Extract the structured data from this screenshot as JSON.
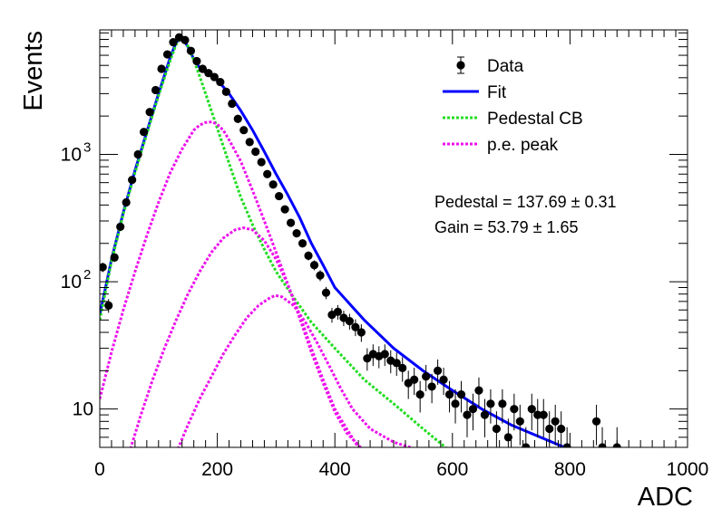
{
  "chart_data": {
    "type": "scatter",
    "xlabel": "ADC",
    "ylabel": "Events",
    "xlim": [
      0,
      1000
    ],
    "ylim": [
      5,
      9500
    ],
    "log_y": true,
    "grid": false,
    "legend_position": "top-right",
    "x_ticks": [
      {
        "value": 0,
        "label": "0"
      },
      {
        "value": 200,
        "label": "200"
      },
      {
        "value": 400,
        "label": "400"
      },
      {
        "value": 600,
        "label": "600"
      },
      {
        "value": 800,
        "label": "800"
      },
      {
        "value": 1000,
        "label": "1000"
      }
    ],
    "y_ticks": [
      {
        "value": 10,
        "label": "10"
      },
      {
        "value": 100,
        "label": "10",
        "exponent": "2"
      },
      {
        "value": 1000,
        "label": "10",
        "exponent": "3"
      }
    ],
    "legend": [
      {
        "label": "Data",
        "style": "marker",
        "color": "#000000"
      },
      {
        "label": "Fit",
        "style": "solid",
        "color": "#0000ff"
      },
      {
        "label": "Pedestal CB",
        "style": "dotted",
        "color": "#22dd22"
      },
      {
        "label": "p.e. peak",
        "style": "dotted",
        "color": "#ee11ee"
      }
    ],
    "annotations": [
      {
        "text": "Pedestal = 137.69 ± 0.31"
      },
      {
        "text": "Gain = 53.79 ± 1.65"
      }
    ],
    "series": [
      {
        "name": "Data",
        "kind": "points",
        "color": "#000000",
        "x": [
          5,
          15,
          25,
          35,
          45,
          55,
          65,
          75,
          85,
          95,
          105,
          115,
          125,
          135,
          145,
          155,
          165,
          175,
          185,
          195,
          205,
          215,
          225,
          235,
          245,
          255,
          265,
          275,
          285,
          295,
          305,
          315,
          325,
          335,
          345,
          355,
          365,
          375,
          385,
          395,
          405,
          415,
          425,
          435,
          445,
          455,
          465,
          475,
          485,
          495,
          505,
          515,
          525,
          535,
          545,
          555,
          565,
          575,
          585,
          595,
          605,
          615,
          625,
          635,
          645,
          655,
          665,
          675,
          685,
          695,
          705,
          715,
          725,
          735,
          745,
          755,
          765,
          775,
          785,
          795,
          845,
          855,
          880
        ],
        "y": [
          130,
          65,
          155,
          270,
          420,
          630,
          1000,
          1500,
          2150,
          3200,
          4700,
          6100,
          7600,
          8300,
          7900,
          6500,
          5400,
          4700,
          4350,
          4050,
          3700,
          3100,
          2500,
          1900,
          1550,
          1250,
          1050,
          870,
          700,
          580,
          470,
          370,
          290,
          240,
          200,
          160,
          135,
          112,
          82,
          55,
          58,
          52,
          49,
          44,
          40,
          25,
          27,
          26,
          27,
          24,
          23,
          21,
          16,
          17,
          13,
          18,
          15,
          20,
          17,
          13,
          11,
          13,
          9,
          10,
          14,
          9,
          11,
          7,
          11,
          6,
          10,
          8,
          5,
          10,
          9,
          9,
          7,
          8,
          7,
          5,
          8,
          5,
          5
        ],
        "yerr": [
          11,
          8,
          12,
          16,
          20,
          25,
          32,
          39,
          46,
          57,
          69,
          78,
          87,
          91,
          89,
          81,
          73,
          69,
          66,
          64,
          61,
          56,
          50,
          44,
          39,
          35,
          32,
          29,
          26,
          24,
          22,
          19,
          17,
          15,
          14,
          13,
          12,
          11,
          9,
          7.4,
          7.6,
          7.2,
          7,
          6.6,
          6.3,
          5,
          5.2,
          5.1,
          5.2,
          4.9,
          4.8,
          4.6,
          4,
          4.1,
          3.6,
          4.2,
          3.9,
          4.5,
          4.1,
          3.6,
          3.3,
          3.6,
          3,
          3.2,
          3.7,
          3,
          3.3,
          2.6,
          3.3,
          2.4,
          3.2,
          2.8,
          2.2,
          3.2,
          3,
          3,
          2.6,
          2.8,
          2.6,
          2.2,
          2.8,
          2.2,
          2.2
        ]
      },
      {
        "name": "Fit",
        "kind": "line",
        "color": "#0000ff",
        "x": [
          0,
          20,
          40,
          60,
          80,
          100,
          120,
          130,
          140,
          150,
          160,
          170,
          180,
          190,
          200,
          210,
          220,
          240,
          260,
          280,
          300,
          320,
          340,
          360,
          380,
          400,
          450,
          500,
          550,
          600,
          650,
          700,
          750,
          800
        ],
        "y": [
          55,
          150,
          350,
          750,
          1500,
          3000,
          5800,
          7600,
          8300,
          7000,
          5600,
          4800,
          4400,
          4100,
          3800,
          3400,
          3000,
          2200,
          1550,
          1050,
          700,
          480,
          320,
          200,
          135,
          90,
          50,
          30,
          20,
          14,
          10,
          7.5,
          6,
          4.8
        ]
      },
      {
        "name": "Pedestal CB",
        "kind": "line",
        "style": "dotted",
        "color": "#22dd22",
        "x": [
          0,
          20,
          40,
          60,
          80,
          100,
          120,
          130,
          138,
          150,
          160,
          170,
          180,
          200,
          220,
          240,
          260,
          280,
          300,
          330,
          360,
          400,
          450,
          500,
          550,
          600
        ],
        "y": [
          50,
          145,
          340,
          720,
          1450,
          2900,
          5500,
          7300,
          8200,
          7100,
          5500,
          4100,
          3000,
          1600,
          850,
          460,
          280,
          180,
          120,
          75,
          48,
          30,
          17,
          11,
          7,
          4.5
        ]
      },
      {
        "name": "p.e. peak",
        "kind": "line",
        "style": "dotted",
        "color": "#ee11ee",
        "x": [
          0,
          20,
          40,
          60,
          80,
          100,
          120,
          140,
          160,
          170,
          180,
          191,
          200,
          210,
          220,
          240,
          260,
          280,
          300,
          320,
          340,
          360,
          380,
          400,
          420,
          440,
          460,
          480
        ],
        "y": [
          12,
          28,
          60,
          120,
          230,
          420,
          720,
          1100,
          1550,
          1700,
          1780,
          1800,
          1720,
          1550,
          1300,
          880,
          520,
          300,
          170,
          95,
          52,
          28,
          16,
          9.5,
          6.5,
          5.2,
          4.2,
          3.5
        ]
      },
      {
        "name": "p.e. peak",
        "kind": "line",
        "style": "dotted",
        "color": "#ee11ee",
        "x": [
          50,
          70,
          90,
          110,
          130,
          150,
          170,
          190,
          210,
          230,
          245,
          260,
          280,
          300,
          320,
          340,
          360,
          380,
          400,
          420,
          440,
          460
        ],
        "y": [
          4.5,
          9,
          17,
          30,
          50,
          80,
          120,
          170,
          220,
          255,
          265,
          255,
          210,
          150,
          95,
          55,
          30,
          17,
          10,
          7,
          5,
          4
        ]
      },
      {
        "name": "p.e. peak",
        "kind": "line",
        "style": "dotted",
        "color": "#ee11ee",
        "x": [
          130,
          150,
          170,
          190,
          210,
          230,
          250,
          270,
          290,
          299,
          310,
          330,
          350,
          370,
          390,
          410,
          430,
          460,
          500,
          540,
          580
        ],
        "y": [
          4.5,
          7.5,
          12,
          18,
          27,
          38,
          52,
          65,
          75,
          78,
          76,
          65,
          48,
          33,
          22,
          14.5,
          10,
          7,
          5.5,
          4.8,
          4.2
        ]
      }
    ]
  }
}
